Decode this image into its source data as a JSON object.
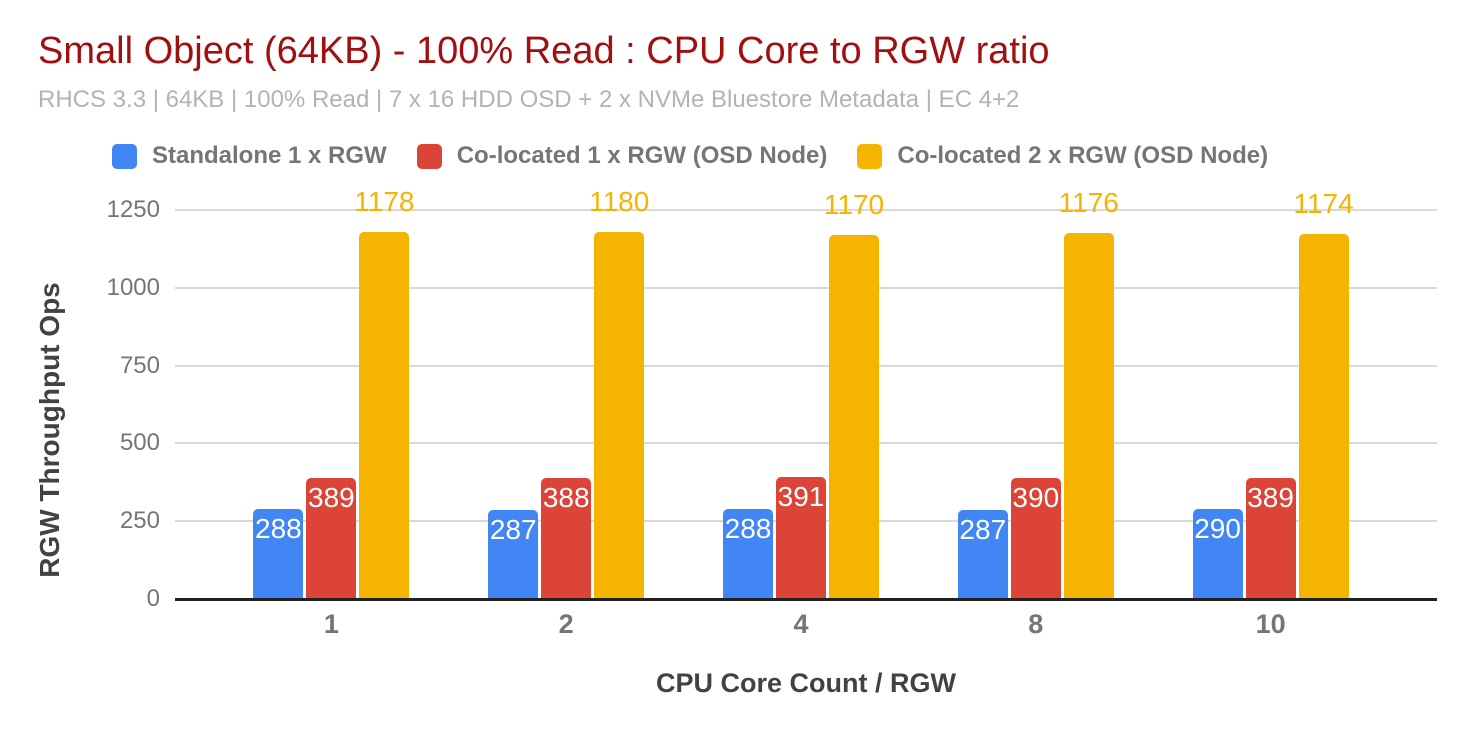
{
  "chart_data": {
    "type": "bar",
    "title": "Small Object (64KB) - 100% Read : CPU Core to RGW ratio",
    "subtitle": "RHCS 3.3 | 64KB | 100% Read | 7 x 16 HDD OSD + 2 x NVMe Bluestore Metadata | EC 4+2",
    "xlabel": "CPU Core Count / RGW",
    "ylabel": "RGW Throughput Ops",
    "categories": [
      "1",
      "2",
      "4",
      "8",
      "10"
    ],
    "series": [
      {
        "name": "Standalone 1 x RGW",
        "color": "#4285F4",
        "values": [
          288,
          287,
          288,
          287,
          290
        ],
        "label_style": "inside-white"
      },
      {
        "name": "Co-located 1 x RGW (OSD Node)",
        "color": "#DB4437",
        "values": [
          389,
          388,
          391,
          390,
          389
        ],
        "label_style": "inside-white"
      },
      {
        "name": "Co-located 2 x RGW (OSD Node)",
        "color": "#F4B400",
        "values": [
          1178,
          1180,
          1170,
          1176,
          1174
        ],
        "label_style": "above-series-color"
      }
    ],
    "ylim": [
      0,
      1250
    ],
    "yticks": [
      0,
      250,
      500,
      750,
      1000,
      1250
    ],
    "grid": true,
    "legend_position": "top-left",
    "colors": {
      "title_text": "#A01010",
      "subtitle_text": "#B3B3B3",
      "axis_tick_text": "#757575",
      "axis_title_text": "#424242",
      "gridline": "#D9D9D9",
      "baseline": "#212121",
      "background": "#FFFFFF"
    }
  }
}
